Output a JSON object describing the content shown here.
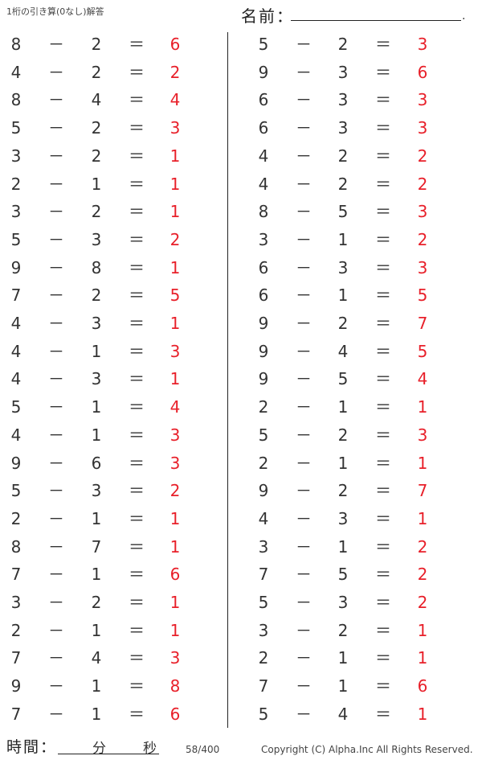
{
  "header": {
    "title": "1桁の引き算(0なし)解答",
    "name_label": "名前：",
    "name_end": "."
  },
  "footer": {
    "time_label": "時間：",
    "minutes_label": "分",
    "seconds_label": "秒",
    "page": "58/400",
    "copyright": "Copyright (C) Alpha.Inc All Rights Reserved."
  },
  "colors": {
    "answer": "#e8202a",
    "text": "#333333"
  },
  "operator": "－",
  "equals": "＝",
  "left": [
    [
      8,
      2,
      6
    ],
    [
      4,
      2,
      2
    ],
    [
      8,
      4,
      4
    ],
    [
      5,
      2,
      3
    ],
    [
      3,
      2,
      1
    ],
    [
      2,
      1,
      1
    ],
    [
      3,
      2,
      1
    ],
    [
      5,
      3,
      2
    ],
    [
      9,
      8,
      1
    ],
    [
      7,
      2,
      5
    ],
    [
      4,
      3,
      1
    ],
    [
      4,
      1,
      3
    ],
    [
      4,
      3,
      1
    ],
    [
      5,
      1,
      4
    ],
    [
      4,
      1,
      3
    ],
    [
      9,
      6,
      3
    ],
    [
      5,
      3,
      2
    ],
    [
      2,
      1,
      1
    ],
    [
      8,
      7,
      1
    ],
    [
      7,
      1,
      6
    ],
    [
      3,
      2,
      1
    ],
    [
      2,
      1,
      1
    ],
    [
      7,
      4,
      3
    ],
    [
      9,
      1,
      8
    ],
    [
      7,
      1,
      6
    ]
  ],
  "right": [
    [
      5,
      2,
      3
    ],
    [
      9,
      3,
      6
    ],
    [
      6,
      3,
      3
    ],
    [
      6,
      3,
      3
    ],
    [
      4,
      2,
      2
    ],
    [
      4,
      2,
      2
    ],
    [
      8,
      5,
      3
    ],
    [
      3,
      1,
      2
    ],
    [
      6,
      3,
      3
    ],
    [
      6,
      1,
      5
    ],
    [
      9,
      2,
      7
    ],
    [
      9,
      4,
      5
    ],
    [
      9,
      5,
      4
    ],
    [
      2,
      1,
      1
    ],
    [
      5,
      2,
      3
    ],
    [
      2,
      1,
      1
    ],
    [
      9,
      2,
      7
    ],
    [
      4,
      3,
      1
    ],
    [
      3,
      1,
      2
    ],
    [
      7,
      5,
      2
    ],
    [
      5,
      3,
      2
    ],
    [
      3,
      2,
      1
    ],
    [
      2,
      1,
      1
    ],
    [
      7,
      1,
      6
    ],
    [
      5,
      4,
      1
    ]
  ]
}
